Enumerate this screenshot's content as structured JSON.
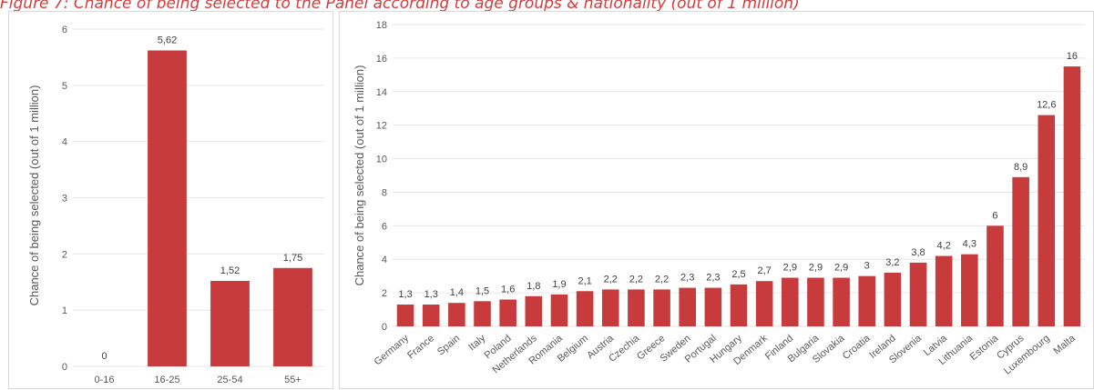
{
  "figure_title": "Figure 7: Chance of being selected to the Panel according to age groups & nationality (out of 1 million)",
  "chart_data": [
    {
      "type": "bar",
      "categories": [
        "0-16",
        "16-25",
        "25-54",
        "55+"
      ],
      "values": [
        0,
        5.62,
        1.52,
        1.75
      ],
      "data_labels": [
        "0",
        "5,62",
        "1,52",
        "1,75"
      ],
      "ylabel": "Chance of being selected (out of 1 million)",
      "ylim": [
        0,
        6
      ],
      "yticks": [
        0,
        1,
        2,
        3,
        4,
        5,
        6
      ],
      "ytick_labels": [
        "0",
        "1",
        "2",
        "3",
        "4",
        "5",
        "6"
      ],
      "grid": true,
      "color": "#c73b3c"
    },
    {
      "type": "bar",
      "categories": [
        "Germany",
        "France",
        "Spain",
        "Italy",
        "Poland",
        "Netherlands",
        "Romania",
        "Belgium",
        "Austria",
        "Czechia",
        "Greece",
        "Sweden",
        "Portugal",
        "Hungary",
        "Denmark",
        "Finland",
        "Bulgaria",
        "Slovakia",
        "Croatia",
        "Ireland",
        "Slovenia",
        "Latvia",
        "Lithuania",
        "Estonia",
        "Cyprus",
        "Luxembourg",
        "Malta"
      ],
      "values": [
        1.3,
        1.3,
        1.4,
        1.5,
        1.6,
        1.8,
        1.9,
        2.1,
        2.2,
        2.2,
        2.2,
        2.3,
        2.3,
        2.5,
        2.7,
        2.9,
        2.9,
        2.9,
        3,
        3.2,
        3.8,
        4.2,
        4.3,
        6,
        8.9,
        12.6,
        15.5
      ],
      "data_labels": [
        "1,3",
        "1,3",
        "1,4",
        "1,5",
        "1,6",
        "1,8",
        "1,9",
        "2,1",
        "2,2",
        "2,2",
        "2,2",
        "2,3",
        "2,3",
        "2,5",
        "2,7",
        "2,9",
        "2,9",
        "2,9",
        "3",
        "3,2",
        "3,8",
        "4,2",
        "4,3",
        "6",
        "8,9",
        "12,6",
        "16"
      ],
      "ylabel": "Chance of being selected (out of 1 million)",
      "ylim": [
        0,
        18
      ],
      "yticks": [
        0,
        2,
        4,
        6,
        8,
        10,
        12,
        14,
        16,
        18
      ],
      "ytick_labels": [
        "0",
        "2",
        "4",
        "6",
        "8",
        "10",
        "12",
        "14",
        "16",
        "18"
      ],
      "grid": true,
      "color": "#c73b3c"
    }
  ]
}
